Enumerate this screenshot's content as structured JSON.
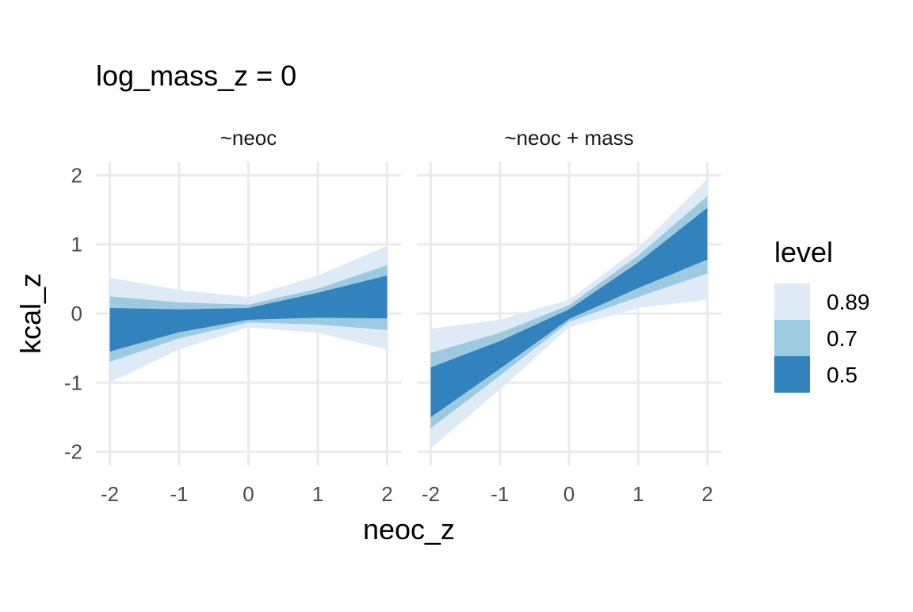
{
  "chart_data": {
    "type": "area",
    "title": "log_mass_z = 0",
    "xlabel": "neoc_z",
    "ylabel": "kcal_z",
    "xlim": [
      -2.2,
      2.2
    ],
    "ylim": [
      -2.2,
      2.2
    ],
    "x_ticks": [
      -2,
      -1,
      0,
      1,
      2
    ],
    "y_ticks": [
      -2,
      -1,
      0,
      1,
      2
    ],
    "x_tick_labels": [
      "-2",
      "-1",
      "0",
      "1",
      "2"
    ],
    "y_tick_labels": [
      "-2",
      "-1",
      "0",
      "1",
      "2"
    ],
    "grid": true,
    "legend": {
      "title": "level",
      "position": "right",
      "entries": [
        {
          "label": "0.89",
          "color": "#deebf7"
        },
        {
          "label": "0.7",
          "color": "#9ecae1"
        },
        {
          "label": "0.5",
          "color": "#3182bd"
        }
      ]
    },
    "panels": [
      {
        "strip": "~neoc",
        "x": [
          -2,
          -1,
          0,
          1,
          2
        ],
        "bands": [
          {
            "level": "0.89",
            "lower": [
              -1.0,
              -0.52,
              -0.2,
              -0.28,
              -0.52
            ],
            "upper": [
              0.52,
              0.34,
              0.24,
              0.55,
              0.98
            ]
          },
          {
            "level": "0.7",
            "lower": [
              -0.7,
              -0.36,
              -0.13,
              -0.16,
              -0.24
            ],
            "upper": [
              0.25,
              0.16,
              0.13,
              0.36,
              0.7
            ]
          },
          {
            "level": "0.5",
            "lower": [
              -0.55,
              -0.27,
              -0.09,
              -0.06,
              -0.07
            ],
            "upper": [
              0.08,
              0.06,
              0.08,
              0.3,
              0.55
            ]
          }
        ]
      },
      {
        "strip": "~neoc + mass",
        "x": [
          -2,
          -1,
          0,
          1,
          2
        ],
        "bands": [
          {
            "level": "0.89",
            "lower": [
              -1.95,
              -1.1,
              -0.2,
              0.08,
              0.2
            ],
            "upper": [
              -0.22,
              -0.09,
              0.2,
              0.95,
              1.95
            ]
          },
          {
            "level": "0.7",
            "lower": [
              -1.66,
              -0.9,
              -0.12,
              0.24,
              0.58
            ],
            "upper": [
              -0.57,
              -0.28,
              0.12,
              0.84,
              1.7
            ]
          },
          {
            "level": "0.5",
            "lower": [
              -1.5,
              -0.8,
              -0.08,
              0.37,
              0.78
            ],
            "upper": [
              -0.78,
              -0.4,
              0.06,
              0.74,
              1.53
            ]
          }
        ]
      }
    ]
  }
}
